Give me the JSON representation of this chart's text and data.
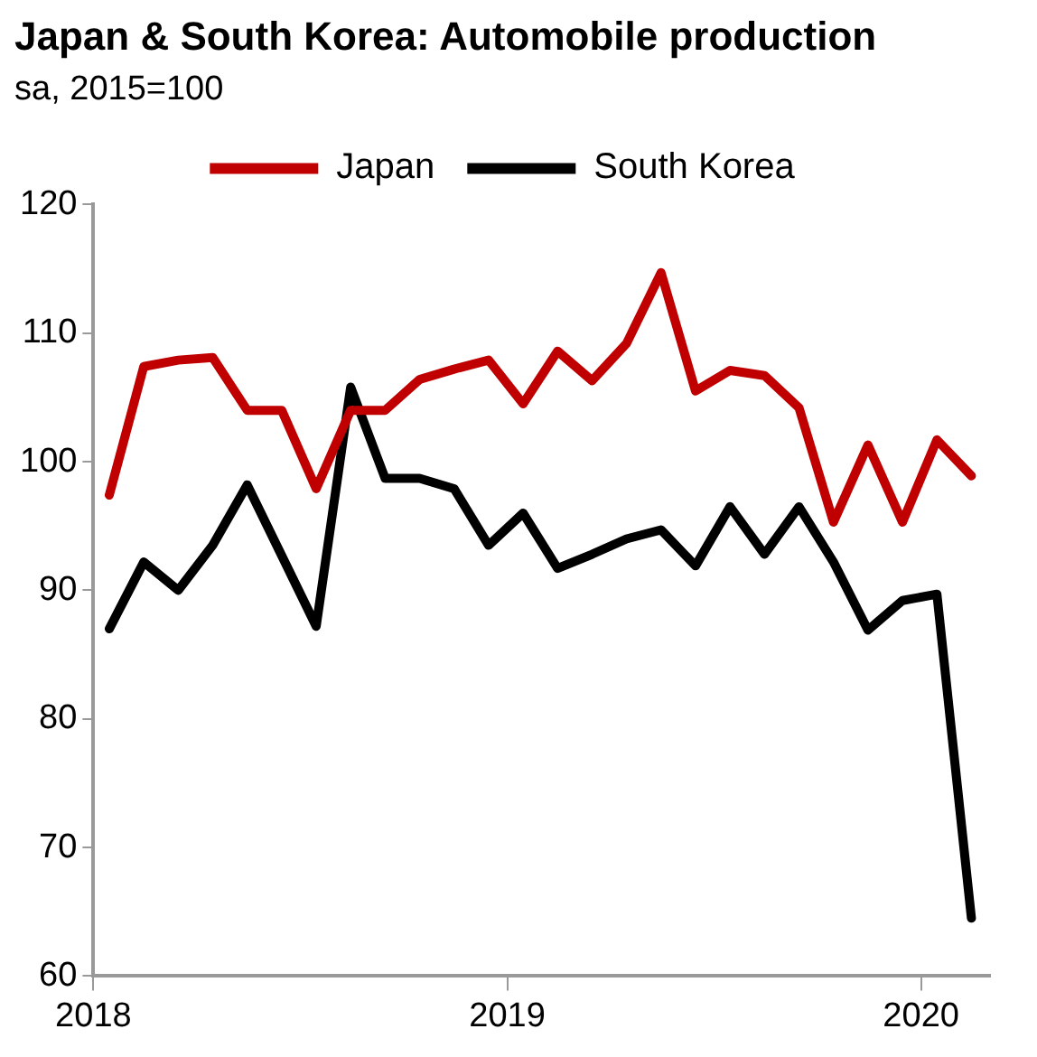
{
  "chart_data": {
    "type": "line",
    "title": "Japan & South Korea: Automobile production",
    "subtitle": "sa, 2015=100",
    "x": [
      "2018-01-15",
      "2018-02-15",
      "2018-03-15",
      "2018-04-15",
      "2018-05-15",
      "2018-06-15",
      "2018-07-15",
      "2018-08-15",
      "2018-09-15",
      "2018-10-15",
      "2018-11-15",
      "2018-12-15",
      "2019-01-15",
      "2019-02-15",
      "2019-03-15",
      "2019-04-15",
      "2019-05-15",
      "2019-06-15",
      "2019-07-15",
      "2019-08-15",
      "2019-09-15",
      "2019-10-15",
      "2019-11-15",
      "2019-12-15",
      "2020-01-15",
      "2020-02-15"
    ],
    "series": [
      {
        "name": "Japan",
        "color": "#c00000",
        "values": [
          97.4,
          107.4,
          107.9,
          108.1,
          104.0,
          104.0,
          97.9,
          104.0,
          104.0,
          106.4,
          107.2,
          107.9,
          104.5,
          108.6,
          106.3,
          109.2,
          114.7,
          105.5,
          107.1,
          106.7,
          104.2,
          95.3,
          101.3,
          95.3,
          101.7,
          98.9
        ]
      },
      {
        "name": "South Korea",
        "color": "#000000",
        "values": [
          87.0,
          92.2,
          90.0,
          93.5,
          98.2,
          92.7,
          87.2,
          105.8,
          98.7,
          98.7,
          97.9,
          93.5,
          96.0,
          91.7,
          92.8,
          94.0,
          94.7,
          91.9,
          96.5,
          92.8,
          96.5,
          92.2,
          86.9,
          89.2,
          89.7,
          64.5
        ]
      }
    ],
    "xlim": [
      "2018-01-01",
      "2020-03-01"
    ],
    "xticks": [
      {
        "value": "2018-01-01",
        "label": "2018"
      },
      {
        "value": "2019-01-01",
        "label": "2019"
      },
      {
        "value": "2020-01-01",
        "label": "2020"
      }
    ],
    "ylim": [
      60,
      120
    ],
    "yticks": [
      60,
      70,
      80,
      90,
      100,
      110,
      120
    ],
    "grid": false,
    "legend": "top"
  }
}
